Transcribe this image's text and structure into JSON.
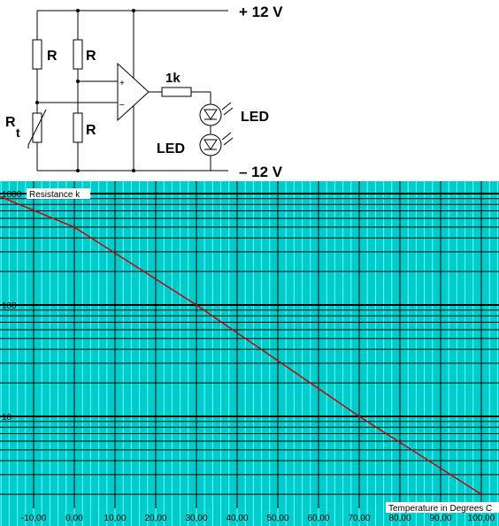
{
  "circuit": {
    "supply_positive": "+ 12 V",
    "supply_negative": "– 12 V",
    "resistor_label": "R",
    "thermistor_label_main": "R",
    "thermistor_label_sub": "t",
    "series_resistor_label": "1k",
    "led_label": "LED",
    "opamp_plus": "+",
    "opamp_minus": "–"
  },
  "chart_data": {
    "type": "line",
    "ylabel": "Resistance k",
    "xlabel": "Temperature in Degrees C",
    "y_scale": "log",
    "ylim": [
      1,
      1000
    ],
    "y_ticks": [
      "1000",
      "100",
      "10"
    ],
    "xlim": [
      -20,
      105
    ],
    "x_ticks": [
      "-10,00",
      "0,00",
      "10,00",
      "20,00",
      "30,00",
      "40,00",
      "50,00",
      "60,00",
      "70,00",
      "80,00",
      "90,00",
      "100,00"
    ],
    "grid": true,
    "series": [
      {
        "x": [
          -20,
          0,
          30,
          70,
          100
        ],
        "y": [
          1000,
          500,
          100,
          10,
          2
        ],
        "color": "#cc0000"
      }
    ],
    "colors": {
      "background": "#00cccc",
      "minor_grid": "#66ffff",
      "major_grid": "#000000"
    }
  }
}
